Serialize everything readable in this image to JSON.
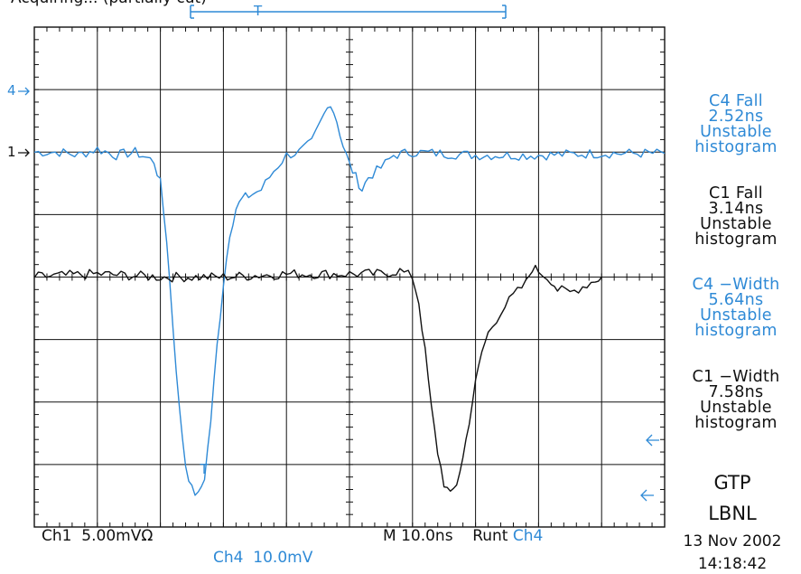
{
  "top_label": "Acquiring... (partially cut)",
  "chart_data": {
    "type": "line",
    "title": "",
    "xlabel": "",
    "ylabel": "",
    "grid": true,
    "xlim": [
      -50,
      50
    ],
    "ylim": [
      -4,
      4
    ],
    "x_unit": "ns (10.0 ns/div)",
    "y_unit": "divisions",
    "series": [
      {
        "name": "Ch4",
        "channel_marker": "4",
        "color": "#2f8ad6",
        "scale": "10.0mV/div",
        "points": [
          [
            -50,
            2.0
          ],
          [
            -46,
            2.0
          ],
          [
            -43,
            1.95
          ],
          [
            -40,
            2.05
          ],
          [
            -37,
            1.95
          ],
          [
            -34,
            2.0
          ],
          [
            -31,
            1.85
          ],
          [
            -30,
            1.5
          ],
          [
            -29,
            0.6
          ],
          [
            -28,
            -0.8
          ],
          [
            -27,
            -2.1
          ],
          [
            -26,
            -3.0
          ],
          [
            -25,
            -3.4
          ],
          [
            -24,
            -3.5
          ],
          [
            -23,
            -3.2
          ],
          [
            -22,
            -2.3
          ],
          [
            -21,
            -1.1
          ],
          [
            -20,
            -0.1
          ],
          [
            -19,
            0.7
          ],
          [
            -18,
            1.1
          ],
          [
            -17,
            1.25
          ],
          [
            -16,
            1.3
          ],
          [
            -14,
            1.4
          ],
          [
            -12,
            1.7
          ],
          [
            -10,
            1.95
          ],
          [
            -8,
            2.0
          ],
          [
            -6,
            2.15
          ],
          [
            -4,
            2.6
          ],
          [
            -3,
            2.8
          ],
          [
            -2,
            2.5
          ],
          [
            -1,
            2.1
          ],
          [
            0,
            1.8
          ],
          [
            1,
            1.6
          ],
          [
            2,
            1.4
          ],
          [
            3,
            1.6
          ],
          [
            5,
            1.75
          ],
          [
            7,
            1.95
          ],
          [
            10,
            2.0
          ],
          [
            20,
            1.95
          ],
          [
            30,
            1.95
          ],
          [
            40,
            1.98
          ],
          [
            50,
            1.98
          ]
        ]
      },
      {
        "name": "Ch1",
        "channel_marker": "1",
        "color": "#111111",
        "scale": "5.00mV",
        "points": [
          [
            -50,
            0.0
          ],
          [
            -40,
            0.05
          ],
          [
            -30,
            0.0
          ],
          [
            -20,
            0.0
          ],
          [
            -10,
            0.05
          ],
          [
            0,
            0.05
          ],
          [
            5,
            0.05
          ],
          [
            8,
            0.1
          ],
          [
            10,
            0.0
          ],
          [
            11,
            -0.4
          ],
          [
            12,
            -1.2
          ],
          [
            13,
            -2.1
          ],
          [
            14,
            -2.8
          ],
          [
            15,
            -3.3
          ],
          [
            16,
            -3.5
          ],
          [
            17,
            -3.3
          ],
          [
            18,
            -2.9
          ],
          [
            19,
            -2.3
          ],
          [
            20,
            -1.7
          ],
          [
            21,
            -1.2
          ],
          [
            22,
            -0.9
          ],
          [
            24,
            -0.55
          ],
          [
            26,
            -0.3
          ],
          [
            28,
            -0.1
          ],
          [
            29,
            0.15
          ],
          [
            30,
            0.1
          ],
          [
            32,
            -0.05
          ],
          [
            33,
            -0.2
          ],
          [
            35,
            -0.25
          ],
          [
            37,
            -0.15
          ],
          [
            39,
            -0.05
          ],
          [
            40,
            0.0
          ]
        ]
      }
    ],
    "annotations": [
      "4→ (Ch4 ground marker)",
      "1→ (Ch1 ground marker)",
      "T (trigger marker)"
    ]
  },
  "measurements": [
    {
      "source": "C4",
      "label": "C4 Fall",
      "value": "2.52ns",
      "status": "Unstable",
      "status2": "histogram",
      "color": "#2f8ad6"
    },
    {
      "source": "C1",
      "label": "C1 Fall",
      "value": "3.14ns",
      "status": "Unstable",
      "status2": "histogram",
      "color": "#111111"
    },
    {
      "source": "C4",
      "label": "C4 −Width",
      "value": "5.64ns",
      "status": "Unstable",
      "status2": "histogram",
      "color": "#2f8ad6"
    },
    {
      "source": "C1",
      "label": "C1 −Width",
      "value": "7.58ns",
      "status": "Unstable",
      "status2": "histogram",
      "color": "#111111"
    }
  ],
  "bottom": {
    "ch1": "Ch1",
    "ch1_scale": "5.00mVΩ",
    "ch4": "Ch4",
    "ch4_scale": "10.0mV",
    "timebase": "M 10.0ns",
    "trigger_mode": "Runt",
    "trigger_source": "Ch4"
  },
  "markers": {
    "ch4": "4",
    "ch1": "1",
    "trigger": "T"
  },
  "stamp": {
    "line1": "GTP",
    "line2": "LBNL",
    "date": "13 Nov 2002",
    "time": "14:18:42"
  }
}
